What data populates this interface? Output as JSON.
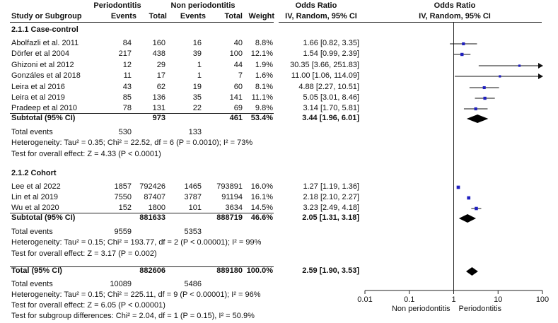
{
  "headers": {
    "group1": "Periodontitis",
    "group2": "Non periodontitis",
    "or_text_title": "Odds Ratio",
    "or_text_sub": "IV, Random, 95% CI",
    "or_plot_title": "Odds Ratio",
    "or_plot_sub": "IV, Random, 95% CI",
    "study": "Study or Subgroup",
    "events1": "Events",
    "total1": "Total",
    "events2": "Events",
    "total2": "Total",
    "weight": "Weight"
  },
  "groups": [
    {
      "title": "2.1.1 Case-control",
      "studies": [
        {
          "name": "Abolfazli et al. 2011",
          "e1": "84",
          "t1": "160",
          "e2": "16",
          "t2": "40",
          "w": "8.8%",
          "ci": "1.66 [0.82, 3.35]"
        },
        {
          "name": "Dörfer et al 2004",
          "e1": "217",
          "t1": "438",
          "e2": "39",
          "t2": "100",
          "w": "12.1%",
          "ci": "1.54 [0.99, 2.39]"
        },
        {
          "name": "Ghizoni et al 2012",
          "e1": "12",
          "t1": "29",
          "e2": "1",
          "t2": "44",
          "w": "1.9%",
          "ci": "30.35 [3.66, 251.83]"
        },
        {
          "name": "Gonzáles et al 2018",
          "e1": "11",
          "t1": "17",
          "e2": "1",
          "t2": "7",
          "w": "1.6%",
          "ci": "11.00 [1.06, 114.09]"
        },
        {
          "name": "Leira et al 2016",
          "e1": "43",
          "t1": "62",
          "e2": "19",
          "t2": "60",
          "w": "8.1%",
          "ci": "4.88 [2.27, 10.51]"
        },
        {
          "name": "Leira et al 2019",
          "e1": "85",
          "t1": "136",
          "e2": "35",
          "t2": "141",
          "w": "11.1%",
          "ci": "5.05 [3.01, 8.46]"
        },
        {
          "name": "Pradeep et al 2010",
          "e1": "78",
          "t1": "131",
          "e2": "22",
          "t2": "69",
          "w": "9.8%",
          "ci": "3.14 [1.70, 5.81]"
        }
      ],
      "subtotal": {
        "label": "Subtotal (95% CI)",
        "t1": "973",
        "t2": "461",
        "w": "53.4%",
        "ci": "3.44 [1.96, 6.01]"
      },
      "total_events": {
        "label": "Total events",
        "e1": "530",
        "e2": "133"
      },
      "heterogeneity": "Heterogeneity: Tau² = 0.35; Chi² = 22.52, df = 6 (P = 0.0010); I² = 73%",
      "overall": "Test for overall effect: Z = 4.33 (P < 0.0001)"
    },
    {
      "title": "2.1.2 Cohort",
      "studies": [
        {
          "name": "Lee et al 2022",
          "e1": "1857",
          "t1": "792426",
          "e2": "1465",
          "t2": "793891",
          "w": "16.0%",
          "ci": "1.27 [1.19, 1.36]"
        },
        {
          "name": "Lin et al 2019",
          "e1": "7550",
          "t1": "87407",
          "e2": "3787",
          "t2": "91194",
          "w": "16.1%",
          "ci": "2.18 [2.10, 2.27]"
        },
        {
          "name": "Wu et al 2020",
          "e1": "152",
          "t1": "1800",
          "e2": "101",
          "t2": "3634",
          "w": "14.5%",
          "ci": "3.23 [2.49, 4.18]"
        }
      ],
      "subtotal": {
        "label": "Subtotal (95% CI)",
        "t1": "881633",
        "t2": "888719",
        "w": "46.6%",
        "ci": "2.05 [1.31, 3.18]"
      },
      "total_events": {
        "label": "Total events",
        "e1": "9559",
        "e2": "5353"
      },
      "heterogeneity": "Heterogeneity: Tau² = 0.15; Chi² = 193.77, df = 2 (P < 0.00001); I² = 99%",
      "overall": "Test for overall effect: Z = 3.17 (P = 0.002)"
    }
  ],
  "total": {
    "label": "Total (95% CI)",
    "t1": "882606",
    "t2": "889180",
    "w": "100.0%",
    "ci": "2.59 [1.90, 3.53]",
    "events_label": "Total events",
    "e1": "10089",
    "e2": "5486",
    "heterogeneity": "Heterogeneity: Tau² = 0.15; Chi² = 225.11, df = 9 (P < 0.00001); I² = 96%",
    "overall": "Test for overall effect: Z = 6.05 (P < 0.00001)",
    "subgroup": "Test for subgroup differences: Chi² = 2.04, df = 1 (P = 0.15), I² = 50.9%"
  },
  "chart_data": {
    "type": "scatter",
    "xscale": "log",
    "xlim": [
      0.01,
      100
    ],
    "xticks": [
      "0.01",
      "0.1",
      "1",
      "10",
      "100"
    ],
    "xtick_values": [
      0.01,
      0.1,
      1,
      10,
      100
    ],
    "reference_line": 1,
    "favours_left": "Non periodontitis",
    "favours_right": "Periodontitis",
    "marker_color": "#1f1fbf",
    "studies": [
      {
        "or": 1.66,
        "lo": 0.82,
        "hi": 3.35,
        "weight": 8.8,
        "row": "case-control"
      },
      {
        "or": 1.54,
        "lo": 0.99,
        "hi": 2.39,
        "weight": 12.1,
        "row": "case-control"
      },
      {
        "or": 30.35,
        "lo": 3.66,
        "hi": 251.83,
        "weight": 1.9,
        "row": "case-control"
      },
      {
        "or": 11.0,
        "lo": 1.06,
        "hi": 114.09,
        "weight": 1.6,
        "row": "case-control"
      },
      {
        "or": 4.88,
        "lo": 2.27,
        "hi": 10.51,
        "weight": 8.1,
        "row": "case-control"
      },
      {
        "or": 5.05,
        "lo": 3.01,
        "hi": 8.46,
        "weight": 11.1,
        "row": "case-control"
      },
      {
        "or": 3.14,
        "lo": 1.7,
        "hi": 5.81,
        "weight": 9.8,
        "row": "case-control"
      },
      {
        "or": 1.27,
        "lo": 1.19,
        "hi": 1.36,
        "weight": 16.0,
        "row": "cohort"
      },
      {
        "or": 2.18,
        "lo": 2.1,
        "hi": 2.27,
        "weight": 16.1,
        "row": "cohort"
      },
      {
        "or": 3.23,
        "lo": 2.49,
        "hi": 4.18,
        "weight": 14.5,
        "row": "cohort"
      }
    ],
    "diamonds": [
      {
        "or": 3.44,
        "lo": 1.96,
        "hi": 6.01
      },
      {
        "or": 2.05,
        "lo": 1.31,
        "hi": 3.18
      },
      {
        "or": 2.59,
        "lo": 1.9,
        "hi": 3.53
      }
    ]
  }
}
